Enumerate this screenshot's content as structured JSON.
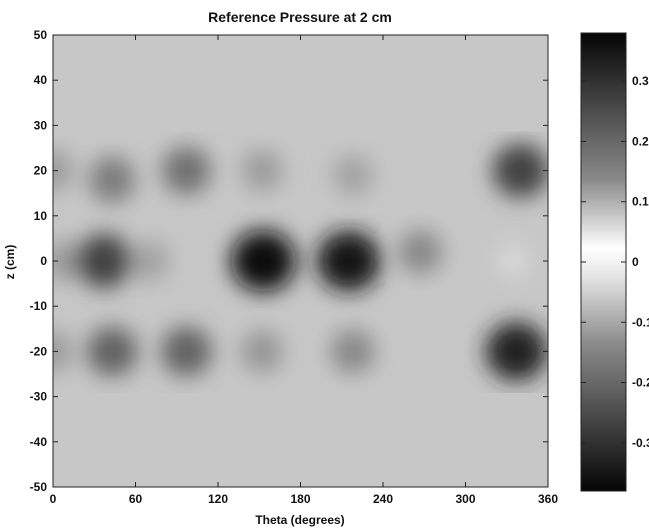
{
  "chart_data": {
    "type": "heatmap",
    "title": "Reference Pressure at 2 cm",
    "xlabel": "Theta (degrees)",
    "ylabel": "z (cm)",
    "xlim": [
      0,
      360
    ],
    "ylim": [
      -50,
      50
    ],
    "x_ticks": [
      "0",
      "60",
      "120",
      "180",
      "240",
      "300",
      "360"
    ],
    "y_ticks": [
      "50",
      "40",
      "30",
      "20",
      "10",
      "0",
      "-10",
      "-20",
      "-30",
      "-40",
      "-50"
    ],
    "colorbar": {
      "range": [
        -0.38,
        0.38
      ],
      "ticks": [
        "0.3",
        "0.2",
        "0.1",
        "0",
        "-0.1",
        "-0.2",
        "-0.3"
      ],
      "colors": [
        "#000000",
        "#ffffff",
        "#000000"
      ]
    },
    "background_value": -0.08,
    "blobs": [
      {
        "theta": 0,
        "z": 20,
        "value": 0.15
      },
      {
        "theta": 43,
        "z": 18,
        "value": 0.2
      },
      {
        "theta": 97,
        "z": 20,
        "value": 0.22
      },
      {
        "theta": 152,
        "z": 20,
        "value": 0.15
      },
      {
        "theta": 218,
        "z": 19,
        "value": 0.14
      },
      {
        "theta": 340,
        "z": 20,
        "value": 0.29
      },
      {
        "theta": 8,
        "z": 0,
        "value": 0.15
      },
      {
        "theta": 37,
        "z": 0,
        "value": 0.29
      },
      {
        "theta": 70,
        "z": 0,
        "value": 0.14
      },
      {
        "theta": 153,
        "z": 0,
        "value": 0.37
      },
      {
        "theta": 215,
        "z": 0,
        "value": 0.36
      },
      {
        "theta": 267,
        "z": 2,
        "value": 0.18
      },
      {
        "theta": 335,
        "z": 0,
        "value": 0.05
      },
      {
        "theta": 0,
        "z": -20,
        "value": 0.15
      },
      {
        "theta": 43,
        "z": -20,
        "value": 0.24
      },
      {
        "theta": 97,
        "z": -20,
        "value": 0.24
      },
      {
        "theta": 152,
        "z": -20,
        "value": 0.16
      },
      {
        "theta": 218,
        "z": -20,
        "value": 0.18
      },
      {
        "theta": 337,
        "z": -20,
        "value": 0.34
      }
    ]
  }
}
